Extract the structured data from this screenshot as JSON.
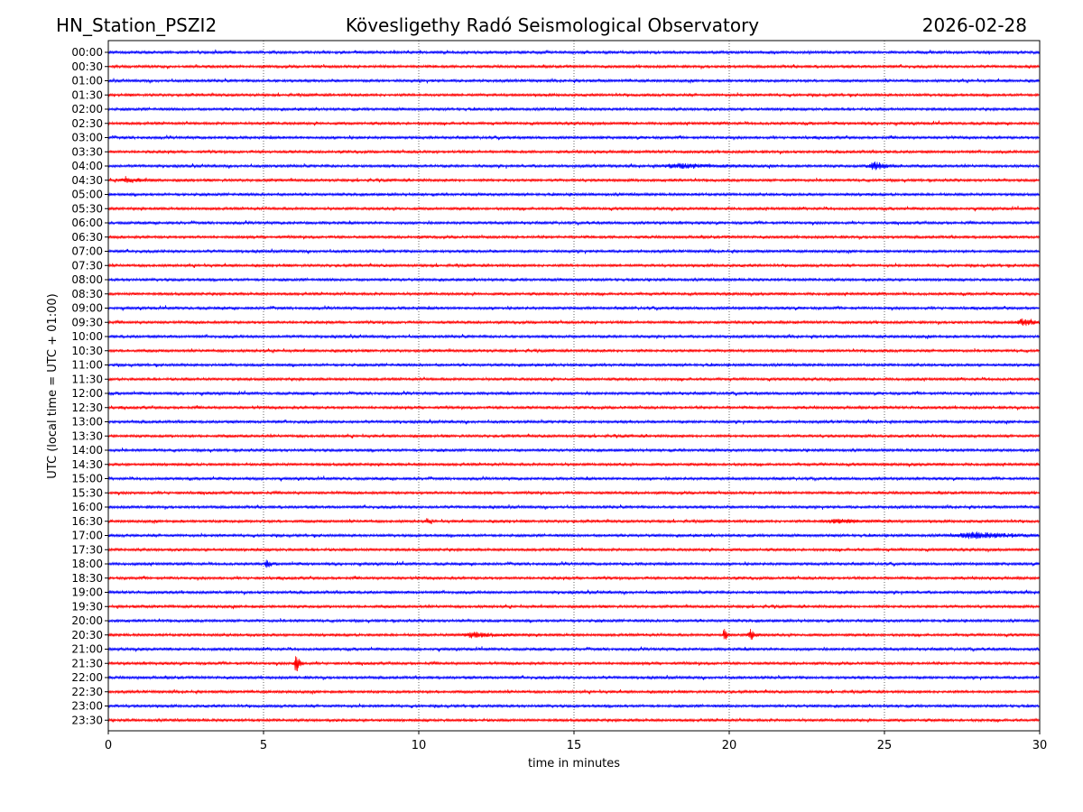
{
  "header": {
    "station": "HN_Station_PSZI2",
    "title": "Kövesligethy Radó Seismological Observatory",
    "date": "2026-02-28"
  },
  "chart_data": {
    "type": "line",
    "xlabel": "time in minutes",
    "ylabel": "UTC (local time = UTC + 01:00)",
    "xlim": [
      0,
      30
    ],
    "xticks": [
      0,
      5,
      10,
      15,
      20,
      25,
      30
    ],
    "grid": "vertical dotted lines at 5-minute ticks",
    "row_colors": [
      "#0000ff",
      "#ff0000"
    ],
    "rows": [
      "00:00",
      "00:30",
      "01:00",
      "01:30",
      "02:00",
      "02:30",
      "03:00",
      "03:30",
      "04:00",
      "04:30",
      "05:00",
      "05:30",
      "06:00",
      "06:30",
      "07:00",
      "07:30",
      "08:00",
      "08:30",
      "09:00",
      "09:30",
      "10:00",
      "10:30",
      "11:00",
      "11:30",
      "12:00",
      "12:30",
      "13:00",
      "13:30",
      "14:00",
      "14:30",
      "15:00",
      "15:30",
      "16:00",
      "16:30",
      "17:00",
      "17:30",
      "18:00",
      "18:30",
      "19:00",
      "19:30",
      "20:00",
      "20:30",
      "21:00",
      "21:30",
      "22:00",
      "22:30",
      "23:00",
      "23:30"
    ],
    "events": [
      {
        "row": "04:00",
        "x": 18.5,
        "amp": 2.0,
        "width": 1.0
      },
      {
        "row": "04:00",
        "x": 24.7,
        "amp": 4.5,
        "width": 0.35
      },
      {
        "row": "04:30",
        "x": 0.6,
        "amp": 2.5,
        "width": 0.4
      },
      {
        "row": "09:30",
        "x": 29.5,
        "amp": 3.0,
        "width": 0.4
      },
      {
        "row": "16:30",
        "x": 10.3,
        "amp": 2.5,
        "width": 0.1
      },
      {
        "row": "16:30",
        "x": 23.5,
        "amp": 2.0,
        "width": 0.8
      },
      {
        "row": "17:00",
        "x": 28.0,
        "amp": 3.0,
        "width": 1.2
      },
      {
        "row": "18:00",
        "x": 5.1,
        "amp": 4.5,
        "width": 0.1
      },
      {
        "row": "20:30",
        "x": 11.8,
        "amp": 2.5,
        "width": 0.7
      },
      {
        "row": "20:30",
        "x": 19.85,
        "amp": 8.0,
        "width": 0.08
      },
      {
        "row": "20:30",
        "x": 20.7,
        "amp": 6.0,
        "width": 0.15
      },
      {
        "row": "21:30",
        "x": 6.05,
        "amp": 12.0,
        "width": 0.1
      }
    ]
  }
}
